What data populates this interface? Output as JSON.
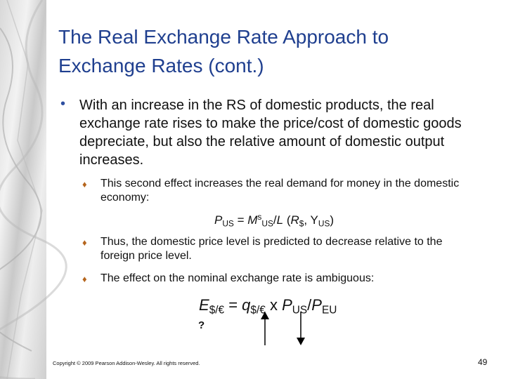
{
  "header": {
    "title": "The Real Exchange Rate Approach to Exchange Rates (cont.)"
  },
  "body": {
    "bullet": "With an increase in the RS of domestic products, the real exchange rate rises to make the price/cost of domestic goods depreciate, but also the relative amount of domestic output increases.",
    "sub_bullets": [
      "This second effect increases the real demand for money in the domestic economy:",
      "Thus, the domestic price level is predicted to decrease relative to the foreign price level.",
      "The effect on the nominal exchange rate is ambiguous:"
    ],
    "equation_1": [
      "P",
      "US",
      " = ",
      "M",
      "s",
      "US",
      "/",
      "L",
      " (",
      "R",
      "$",
      ", Y",
      "US",
      ")"
    ],
    "equation_2": [
      "E",
      "$/€",
      " = ",
      "q",
      "$/€",
      " x ",
      "P",
      "US",
      "/",
      "P",
      "EU"
    ],
    "question_mark": "?"
  },
  "footer": {
    "copyright": "Copyright © 2009 Pearson Addison-Wesley. All rights reserved.",
    "page_number": "49"
  }
}
